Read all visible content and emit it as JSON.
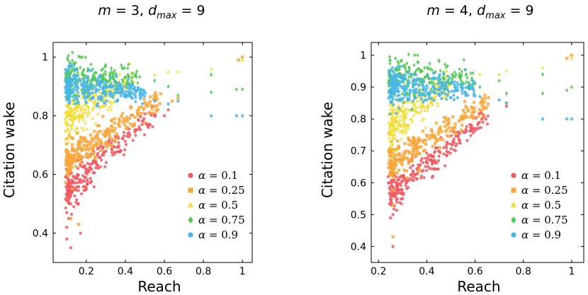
{
  "chart_data": [
    {
      "type": "scatter",
      "title": "m = 3, d_max = 9",
      "title_parts": {
        "m_var": "m",
        "m_val": " = 3, ",
        "d_var": "d",
        "d_sub": "max",
        "d_val": " = 9"
      },
      "xlabel": "Reach",
      "ylabel": "Citation wake",
      "xlim": [
        0.03,
        1.05
      ],
      "ylim": [
        0.3,
        1.05
      ],
      "xticks": [
        {
          "value": 0.2,
          "label": "0.2"
        },
        {
          "value": 0.4,
          "label": "0.4"
        },
        {
          "value": 0.6,
          "label": "0.6"
        },
        {
          "value": 0.8,
          "label": "0.8"
        },
        {
          "value": 1.0,
          "label": "1"
        }
      ],
      "yticks": [
        {
          "value": 0.4,
          "label": "0.4"
        },
        {
          "value": 0.6,
          "label": "0.6"
        },
        {
          "value": 0.8,
          "label": "0.8"
        },
        {
          "value": 1.0,
          "label": "1"
        }
      ],
      "legend_position": "bottom-right",
      "series": [
        {
          "name": "α = 0.1",
          "alpha": "0.1",
          "color": "#f0575f",
          "marker": "circle",
          "cloud": {
            "x0": 0.1,
            "x1": 0.55,
            "y0": 0.55,
            "y1": 0.81,
            "spread": 0.035,
            "n": 260
          },
          "points": [
            [
              0.1,
              0.47
            ],
            [
              0.11,
              0.45
            ],
            [
              0.1,
              0.38
            ],
            [
              0.12,
              0.35
            ],
            [
              0.1,
              0.42
            ],
            [
              0.17,
              0.4
            ],
            [
              0.12,
              0.5
            ],
            [
              0.2,
              0.55
            ],
            [
              0.6,
              0.8
            ],
            [
              0.62,
              0.82
            ]
          ]
        },
        {
          "name": "α = 0.25",
          "alpha": "0.25",
          "color": "#f9a73c",
          "marker": "square",
          "cloud": {
            "x0": 0.1,
            "x1": 0.58,
            "y0": 0.65,
            "y1": 0.85,
            "spread": 0.03,
            "n": 260
          },
          "points": [
            [
              0.12,
              0.45
            ],
            [
              0.16,
              0.43
            ],
            [
              0.13,
              0.55
            ],
            [
              0.64,
              0.85
            ],
            [
              0.67,
              0.86
            ],
            [
              0.98,
              0.99
            ],
            [
              1.0,
              1.0
            ]
          ]
        },
        {
          "name": "α = 0.5",
          "alpha": "0.5",
          "color": "#f2dc2d",
          "marker": "triangle",
          "cloud": {
            "x0": 0.1,
            "x1": 0.45,
            "y0": 0.8,
            "y1": 0.93,
            "spread": 0.04,
            "n": 260
          },
          "points": [
            [
              0.55,
              0.94
            ],
            [
              0.62,
              0.95
            ],
            [
              0.67,
              0.95
            ],
            [
              0.84,
              0.96
            ],
            [
              1.0,
              0.99
            ]
          ]
        },
        {
          "name": "α = 0.75",
          "alpha": "0.75",
          "color": "#4cc84c",
          "marker": "diamond",
          "cloud": {
            "x0": 0.1,
            "x1": 0.48,
            "y0": 0.93,
            "y1": 0.93,
            "spread": 0.035,
            "n": 220
          },
          "points": [
            [
              0.17,
              1.0
            ],
            [
              0.55,
              0.92
            ],
            [
              0.62,
              0.9
            ],
            [
              0.67,
              0.87
            ],
            [
              0.84,
              0.88
            ],
            [
              0.84,
              0.94
            ],
            [
              0.97,
              0.89
            ],
            [
              1.0,
              0.89
            ]
          ]
        },
        {
          "name": "α = 0.9",
          "alpha": "0.9",
          "color": "#48b6e8",
          "marker": "pentagon",
          "cloud": {
            "x0": 0.1,
            "x1": 0.5,
            "y0": 0.9,
            "y1": 0.88,
            "spread": 0.03,
            "n": 300
          },
          "points": [
            [
              0.55,
              0.85
            ],
            [
              0.62,
              0.84
            ],
            [
              0.67,
              0.85
            ],
            [
              0.84,
              0.8
            ],
            [
              0.97,
              0.8
            ],
            [
              1.0,
              0.8
            ]
          ]
        }
      ]
    },
    {
      "type": "scatter",
      "title": "m = 4, d_max = 9",
      "title_parts": {
        "m_var": "m",
        "m_val": " = 4, ",
        "d_var": "d",
        "d_sub": "max",
        "d_val": " = 9"
      },
      "xlabel": "Reach",
      "ylabel": "Citation wake",
      "xlim": [
        0.17,
        1.05
      ],
      "ylim": [
        0.35,
        1.04
      ],
      "xticks": [
        {
          "value": 0.2,
          "label": "0.2"
        },
        {
          "value": 0.4,
          "label": "0.4"
        },
        {
          "value": 0.6,
          "label": "0.6"
        },
        {
          "value": 0.8,
          "label": "0.8"
        },
        {
          "value": 1.0,
          "label": "1"
        }
      ],
      "yticks": [
        {
          "value": 0.4,
          "label": "0.4"
        },
        {
          "value": 0.5,
          "label": "0.5"
        },
        {
          "value": 0.6,
          "label": "0.6"
        },
        {
          "value": 0.7,
          "label": "0.7"
        },
        {
          "value": 0.8,
          "label": "0.8"
        },
        {
          "value": 0.9,
          "label": "0.9"
        },
        {
          "value": 1.0,
          "label": "1"
        }
      ],
      "legend_position": "bottom-right",
      "series": [
        {
          "name": "α = 0.1",
          "alpha": "0.1",
          "color": "#f0575f",
          "marker": "circle",
          "cloud": {
            "x0": 0.25,
            "x1": 0.65,
            "y0": 0.57,
            "y1": 0.81,
            "spread": 0.03,
            "n": 260
          },
          "points": [
            [
              0.25,
              0.49
            ],
            [
              0.26,
              0.5
            ],
            [
              0.26,
              0.4
            ],
            [
              0.3,
              0.55
            ],
            [
              0.73,
              0.84
            ]
          ]
        },
        {
          "name": "α = 0.25",
          "alpha": "0.25",
          "color": "#f9a73c",
          "marker": "square",
          "cloud": {
            "x0": 0.25,
            "x1": 0.66,
            "y0": 0.66,
            "y1": 0.86,
            "spread": 0.03,
            "n": 260
          },
          "points": [
            [
              0.26,
              0.43
            ],
            [
              0.26,
              0.53
            ],
            [
              0.73,
              0.85
            ],
            [
              0.98,
              0.99
            ],
            [
              1.0,
              1.0
            ]
          ]
        },
        {
          "name": "α = 0.5",
          "alpha": "0.5",
          "color": "#f2dc2d",
          "marker": "triangle",
          "cloud": {
            "x0": 0.25,
            "x1": 0.5,
            "y0": 0.78,
            "y1": 0.91,
            "spread": 0.04,
            "n": 260
          },
          "points": [
            [
              0.62,
              0.94
            ],
            [
              0.7,
              0.94
            ],
            [
              0.73,
              0.95
            ],
            [
              0.88,
              0.96
            ],
            [
              1.0,
              0.99
            ]
          ]
        },
        {
          "name": "α = 0.75",
          "alpha": "0.75",
          "color": "#4cc84c",
          "marker": "diamond",
          "cloud": {
            "x0": 0.25,
            "x1": 0.6,
            "y0": 0.93,
            "y1": 0.93,
            "spread": 0.035,
            "n": 220
          },
          "points": [
            [
              0.35,
              1.0
            ],
            [
              0.62,
              0.9
            ],
            [
              0.7,
              0.92
            ],
            [
              0.73,
              0.88
            ],
            [
              0.88,
              0.88
            ],
            [
              0.88,
              0.94
            ],
            [
              0.98,
              0.89
            ],
            [
              1.0,
              0.9
            ]
          ]
        },
        {
          "name": "α = 0.9",
          "alpha": "0.9",
          "color": "#48b6e8",
          "marker": "pentagon",
          "cloud": {
            "x0": 0.25,
            "x1": 0.6,
            "y0": 0.9,
            "y1": 0.89,
            "spread": 0.03,
            "n": 300
          },
          "points": [
            [
              0.62,
              0.87
            ],
            [
              0.7,
              0.86
            ],
            [
              0.73,
              0.85
            ],
            [
              0.88,
              0.8
            ],
            [
              0.98,
              0.8
            ],
            [
              1.0,
              0.8
            ]
          ]
        }
      ]
    }
  ]
}
